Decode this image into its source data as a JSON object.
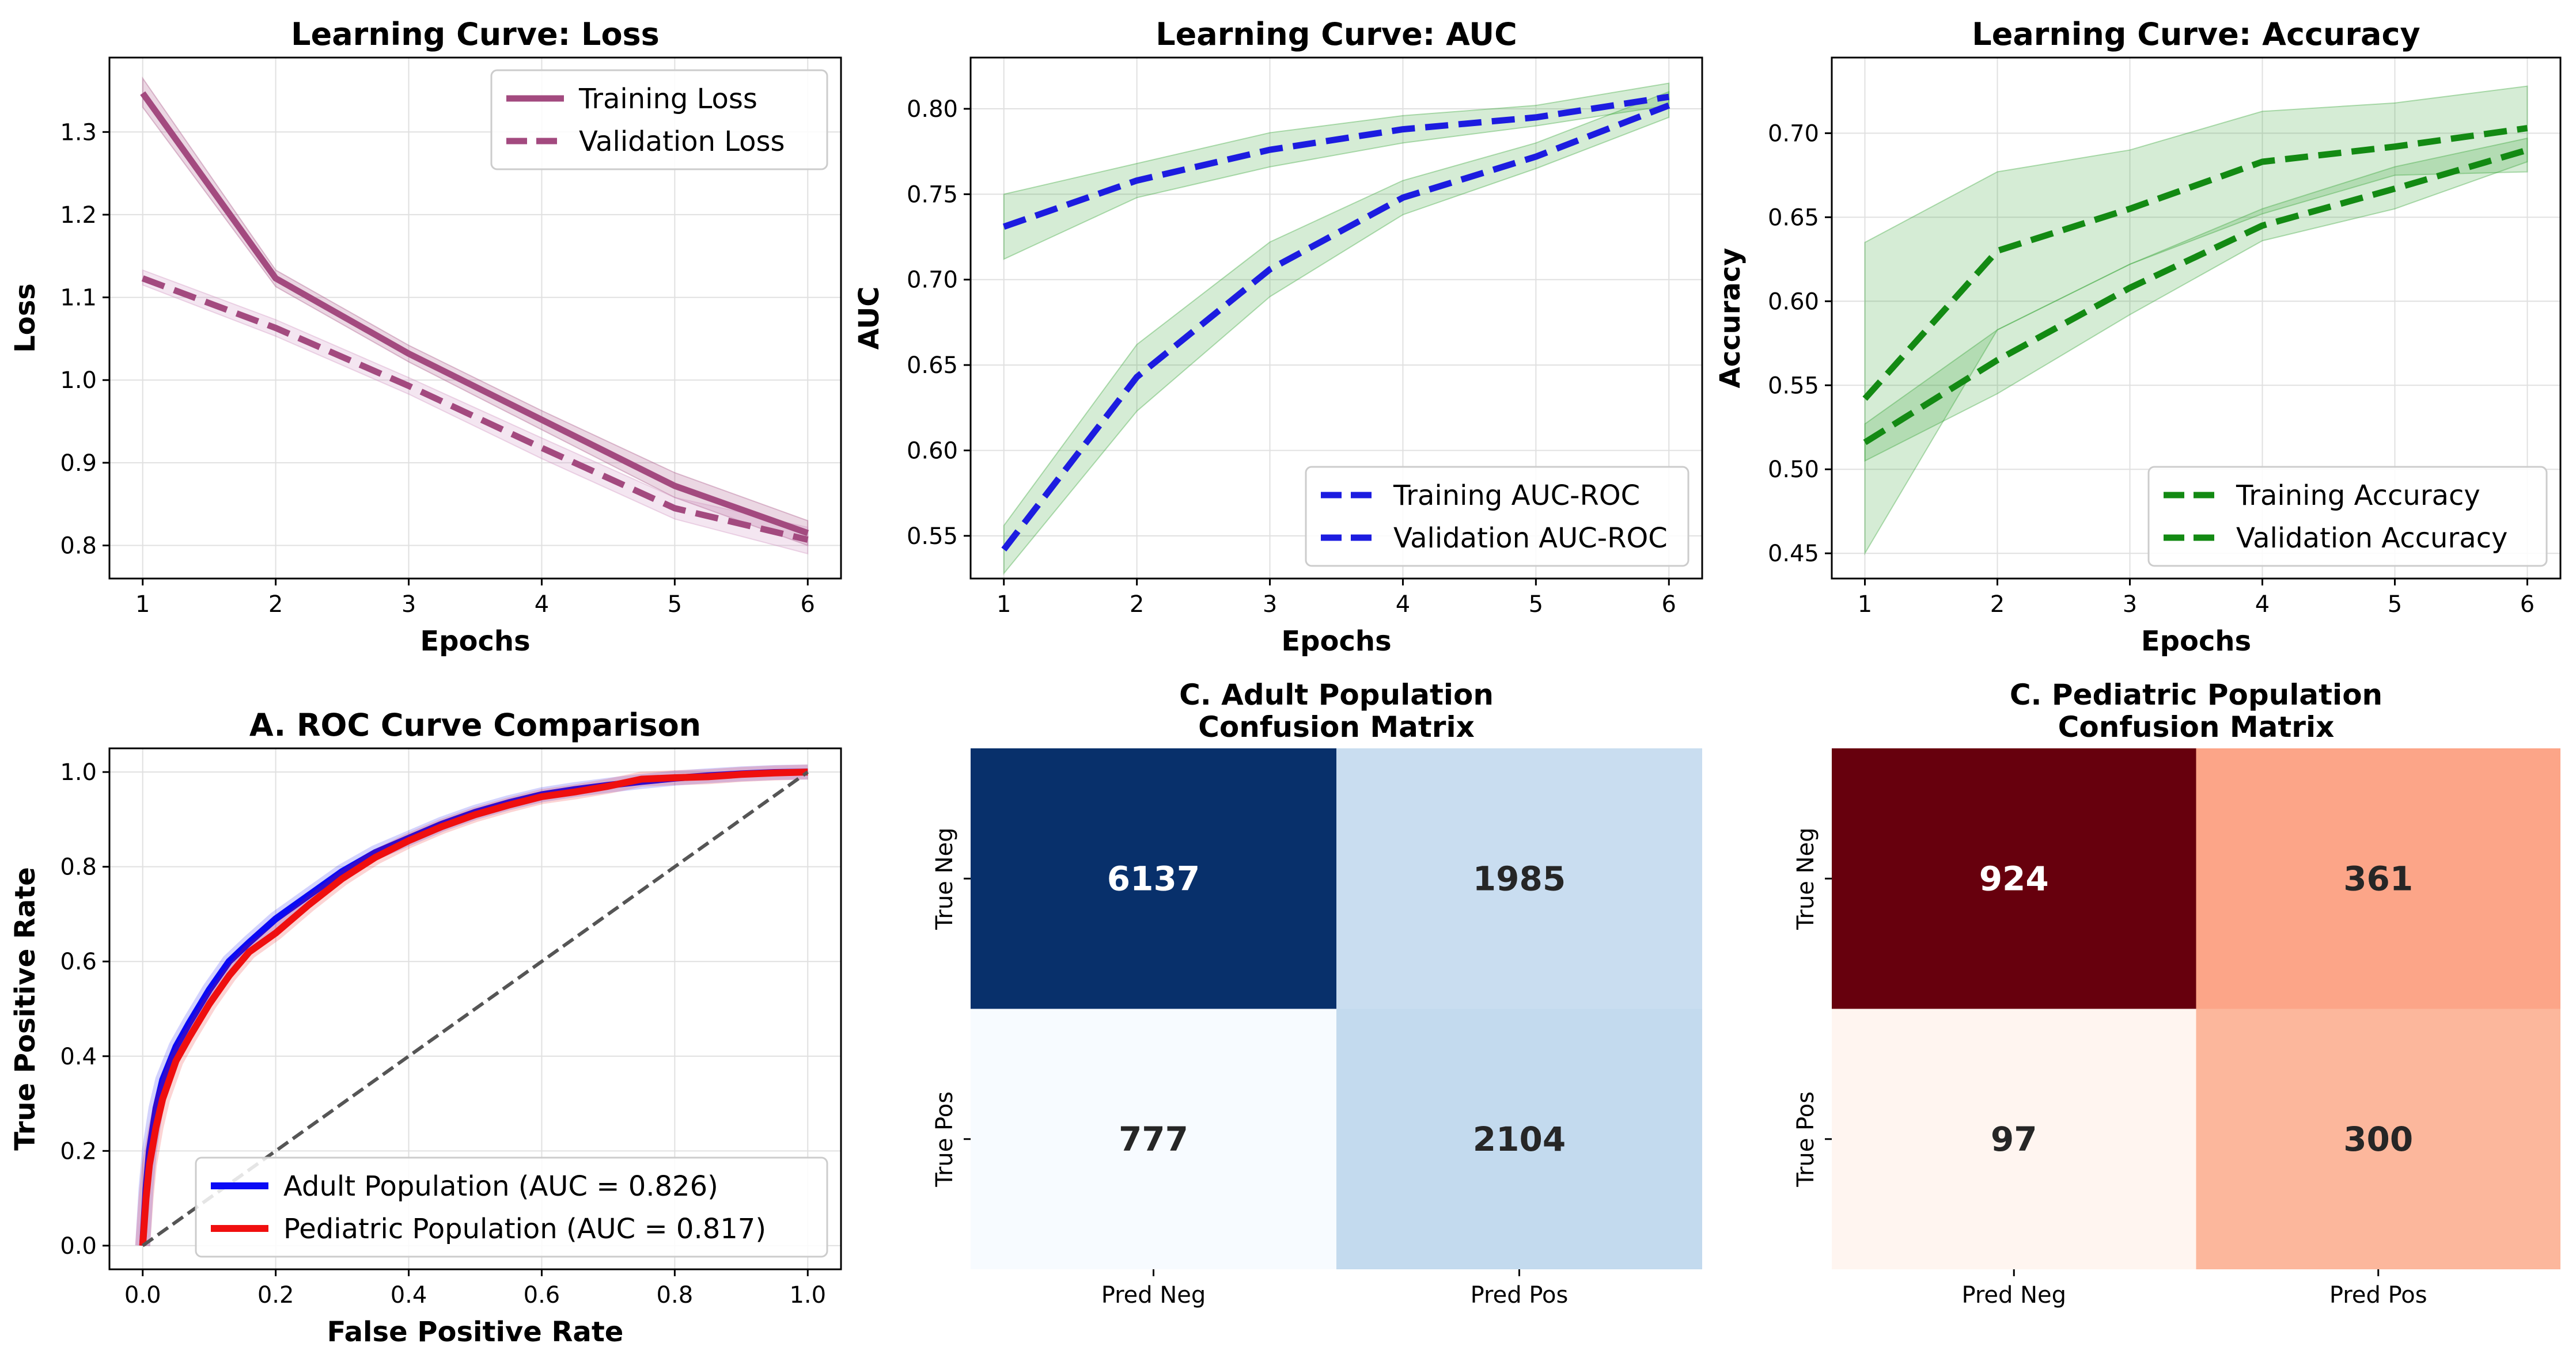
{
  "chart_data": [
    {
      "id": "loss",
      "type": "line",
      "title": "Learning Curve: Loss",
      "xlabel": "Epochs",
      "ylabel": "Loss",
      "xlim": [
        0.75,
        6.25
      ],
      "ylim": [
        0.76,
        1.39
      ],
      "xticks": [
        1,
        2,
        3,
        4,
        5,
        6
      ],
      "yticks": [
        0.8,
        0.9,
        1.0,
        1.1,
        1.2,
        1.3
      ],
      "grid": true,
      "legend": "top-right",
      "x": [
        1,
        2,
        3,
        4,
        5,
        6
      ],
      "series": [
        {
          "name": "Training Loss",
          "color": "#a34a7f",
          "dash": "solid",
          "values": [
            1.347,
            1.123,
            1.032,
            0.952,
            0.872,
            0.815
          ],
          "band": [
            [
              1.33,
              1.365
            ],
            [
              1.113,
              1.133
            ],
            [
              1.022,
              1.042
            ],
            [
              0.94,
              0.963
            ],
            [
              0.858,
              0.888
            ],
            [
              0.8,
              0.83
            ]
          ]
        },
        {
          "name": "Validation Loss",
          "color": "#a34a7f",
          "dash": "dashed",
          "values": [
            1.123,
            1.063,
            0.993,
            0.918,
            0.845,
            0.807
          ],
          "band": [
            [
              1.115,
              1.133
            ],
            [
              1.053,
              1.073
            ],
            [
              0.983,
              1.003
            ],
            [
              0.905,
              0.93
            ],
            [
              0.832,
              0.858
            ],
            [
              0.79,
              0.822
            ]
          ],
          "band_color": "#cf8fbd"
        }
      ]
    },
    {
      "id": "auc",
      "type": "line",
      "title": "Learning Curve: AUC",
      "xlabel": "Epochs",
      "ylabel": "AUC",
      "xlim": [
        0.75,
        6.25
      ],
      "ylim": [
        0.525,
        0.83
      ],
      "xticks": [
        1,
        2,
        3,
        4,
        5,
        6
      ],
      "yticks": [
        0.55,
        0.6,
        0.65,
        0.7,
        0.75,
        0.8
      ],
      "grid": true,
      "legend": "bottom-right",
      "x": [
        1,
        2,
        3,
        4,
        5,
        6
      ],
      "series": [
        {
          "name": "Training AUC-ROC",
          "color": "#1c1ce0",
          "dash": "dashed",
          "values": [
            0.731,
            0.758,
            0.776,
            0.788,
            0.795,
            0.807
          ],
          "band": [
            [
              0.712,
              0.75
            ],
            [
              0.748,
              0.768
            ],
            [
              0.766,
              0.786
            ],
            [
              0.78,
              0.796
            ],
            [
              0.79,
              0.802
            ],
            [
              0.802,
              0.815
            ]
          ]
        },
        {
          "name": "Validation AUC-ROC",
          "color": "#1c1ce0",
          "dash": "dashed",
          "values": [
            0.542,
            0.643,
            0.706,
            0.748,
            0.772,
            0.802
          ],
          "band": [
            [
              0.528,
              0.556
            ],
            [
              0.623,
              0.662
            ],
            [
              0.69,
              0.722
            ],
            [
              0.738,
              0.758
            ],
            [
              0.765,
              0.78
            ],
            [
              0.795,
              0.81
            ]
          ]
        }
      ]
    },
    {
      "id": "accuracy",
      "type": "line",
      "title": "Learning Curve: Accuracy",
      "xlabel": "Epochs",
      "ylabel": "Accuracy",
      "xlim": [
        0.75,
        6.25
      ],
      "ylim": [
        0.435,
        0.745
      ],
      "xticks": [
        1,
        2,
        3,
        4,
        5,
        6
      ],
      "yticks": [
        0.45,
        0.5,
        0.55,
        0.6,
        0.65,
        0.7
      ],
      "grid": true,
      "legend": "bottom-right",
      "x": [
        1,
        2,
        3,
        4,
        5,
        6
      ],
      "series": [
        {
          "name": "Training Accuracy",
          "color": "#138a13",
          "dash": "dashed",
          "values": [
            0.542,
            0.63,
            0.655,
            0.683,
            0.692,
            0.703
          ],
          "band": [
            [
              0.45,
              0.635
            ],
            [
              0.583,
              0.677
            ],
            [
              0.622,
              0.69
            ],
            [
              0.652,
              0.713
            ],
            [
              0.675,
              0.718
            ],
            [
              0.677,
              0.728
            ]
          ]
        },
        {
          "name": "Validation Accuracy",
          "color": "#138a13",
          "dash": "dashed",
          "values": [
            0.516,
            0.565,
            0.608,
            0.645,
            0.667,
            0.69
          ],
          "band": [
            [
              0.505,
              0.527
            ],
            [
              0.545,
              0.583
            ],
            [
              0.592,
              0.622
            ],
            [
              0.636,
              0.655
            ],
            [
              0.655,
              0.68
            ],
            [
              0.683,
              0.697
            ]
          ]
        }
      ]
    },
    {
      "id": "roc",
      "type": "line",
      "title": "A. ROC Curve Comparison",
      "xlabel": "False Positive Rate",
      "ylabel": "True Positive Rate",
      "xlim": [
        -0.05,
        1.05
      ],
      "ylim": [
        -0.05,
        1.05
      ],
      "xticks": [
        0.0,
        0.2,
        0.4,
        0.6,
        0.8,
        1.0
      ],
      "yticks": [
        0.0,
        0.2,
        0.4,
        0.6,
        0.8,
        1.0
      ],
      "grid": true,
      "legend": "bottom-right",
      "series": [
        {
          "name": "Adult Population (AUC = 0.826)",
          "color": "#0a0af5",
          "dash": "solid",
          "x": [
            0,
            0.005,
            0.01,
            0.02,
            0.03,
            0.05,
            0.07,
            0.1,
            0.13,
            0.16,
            0.2,
            0.25,
            0.3,
            0.35,
            0.4,
            0.45,
            0.5,
            0.55,
            0.6,
            0.65,
            0.7,
            0.75,
            0.8,
            0.85,
            0.9,
            0.95,
            1.0
          ],
          "values": [
            0,
            0.12,
            0.2,
            0.29,
            0.35,
            0.42,
            0.47,
            0.54,
            0.6,
            0.64,
            0.69,
            0.74,
            0.79,
            0.83,
            0.86,
            0.89,
            0.915,
            0.935,
            0.952,
            0.963,
            0.972,
            0.98,
            0.987,
            0.992,
            0.996,
            0.999,
            1.0
          ]
        },
        {
          "name": "Pediatric Population (AUC = 0.817)",
          "color": "#f00f0f",
          "dash": "solid",
          "x": [
            0,
            0.005,
            0.01,
            0.02,
            0.03,
            0.05,
            0.07,
            0.1,
            0.13,
            0.16,
            0.2,
            0.25,
            0.3,
            0.35,
            0.4,
            0.45,
            0.5,
            0.55,
            0.6,
            0.65,
            0.7,
            0.75,
            0.8,
            0.85,
            0.9,
            0.95,
            1.0
          ],
          "values": [
            0,
            0.1,
            0.17,
            0.25,
            0.31,
            0.39,
            0.44,
            0.51,
            0.57,
            0.62,
            0.66,
            0.72,
            0.775,
            0.82,
            0.855,
            0.885,
            0.91,
            0.93,
            0.948,
            0.958,
            0.97,
            0.985,
            0.988,
            0.99,
            0.995,
            0.998,
            1.0
          ]
        },
        {
          "name": "",
          "color": "#555555",
          "dash": "dashed",
          "x": [
            0,
            1
          ],
          "values": [
            0,
            1
          ]
        }
      ]
    },
    {
      "id": "cm_adult",
      "type": "heatmap",
      "title": [
        "C. Adult Population",
        "Confusion Matrix"
      ],
      "xcategories": [
        "Pred Neg",
        "Pred Pos"
      ],
      "ycategories": [
        "True Neg",
        "True Pos"
      ],
      "values": [
        [
          6137,
          1985
        ],
        [
          777,
          2104
        ]
      ],
      "cell_colors": [
        [
          "#08306b",
          "#c9ddf0"
        ],
        [
          "#f7fbff",
          "#c3daee"
        ]
      ],
      "text_colors": [
        [
          "#ffffff",
          "#262626"
        ],
        [
          "#262626",
          "#262626"
        ]
      ]
    },
    {
      "id": "cm_pediatric",
      "type": "heatmap",
      "title": [
        "C. Pediatric Population",
        "Confusion Matrix"
      ],
      "xcategories": [
        "Pred Neg",
        "Pred Pos"
      ],
      "ycategories": [
        "True Neg",
        "True Pos"
      ],
      "values": [
        [
          924,
          361
        ],
        [
          97,
          300
        ]
      ],
      "cell_colors": [
        [
          "#67000d",
          "#fca588"
        ],
        [
          "#fff5f0",
          "#fcb79c"
        ]
      ],
      "text_colors": [
        [
          "#ffffff",
          "#262626"
        ],
        [
          "#262626",
          "#262626"
        ]
      ]
    }
  ]
}
